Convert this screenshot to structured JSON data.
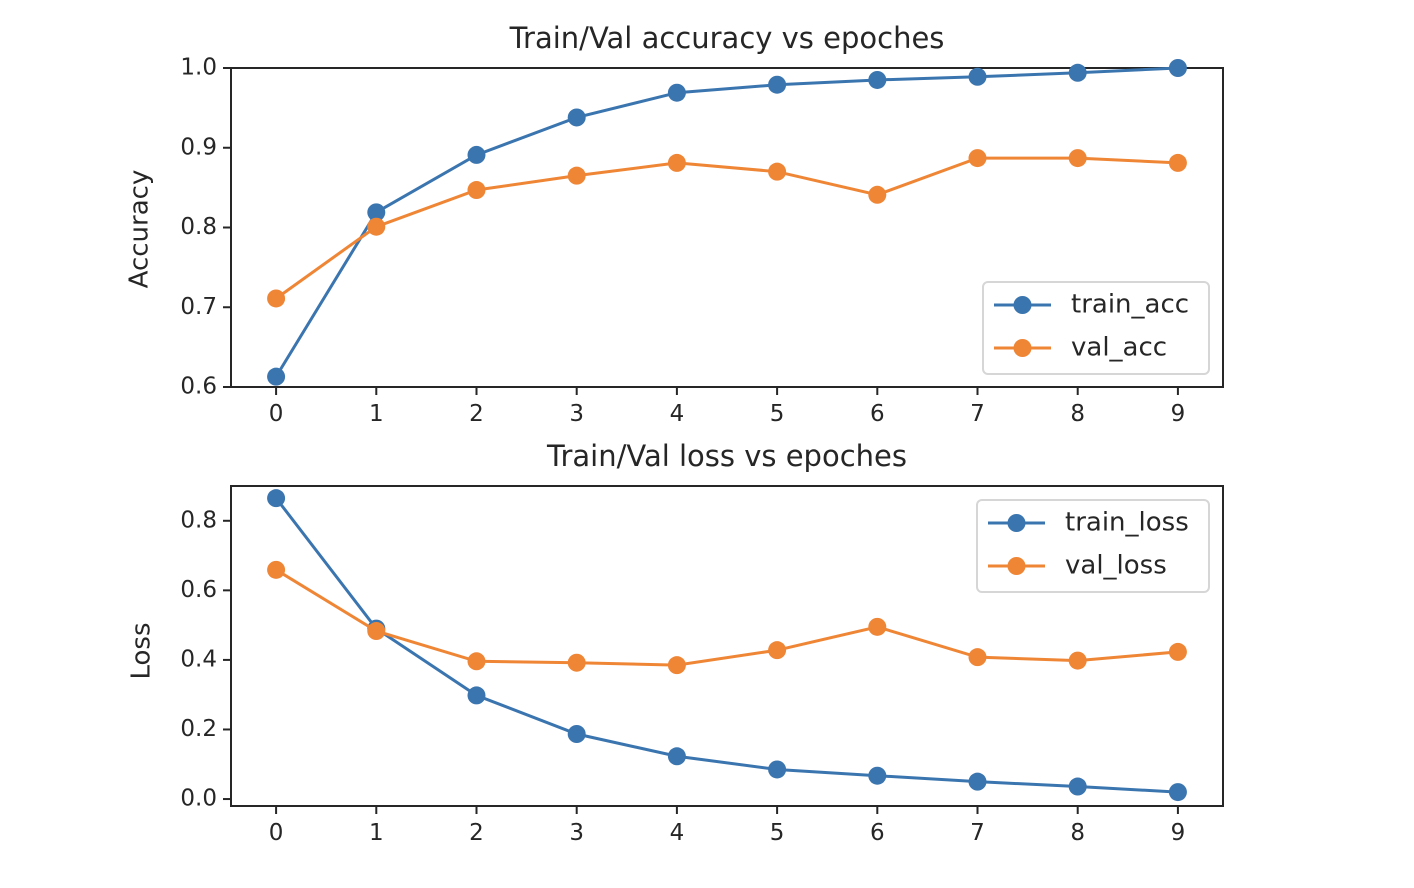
{
  "chart_data": [
    {
      "type": "line",
      "title": "Train/Val accuracy vs epoches",
      "xlabel": "",
      "ylabel": "Accuracy",
      "x": [
        0,
        1,
        2,
        3,
        4,
        5,
        6,
        7,
        8,
        9
      ],
      "xticks": [
        "0",
        "1",
        "2",
        "3",
        "4",
        "5",
        "6",
        "7",
        "8",
        "9"
      ],
      "ylim": [
        0.6,
        1.0
      ],
      "yticks": [
        "0.6",
        "0.7",
        "0.8",
        "0.9",
        "1.0"
      ],
      "grid": false,
      "legend_position": "lower right",
      "series": [
        {
          "name": "train_acc",
          "color": "#3b75af",
          "marker": "circle",
          "values": [
            0.613,
            0.819,
            0.891,
            0.938,
            0.969,
            0.979,
            0.985,
            0.989,
            0.994,
            1.0
          ]
        },
        {
          "name": "val_acc",
          "color": "#ef8636",
          "marker": "circle",
          "values": [
            0.711,
            0.801,
            0.847,
            0.865,
            0.881,
            0.87,
            0.841,
            0.887,
            0.887,
            0.881
          ]
        }
      ]
    },
    {
      "type": "line",
      "title": "Train/Val loss vs epoches",
      "xlabel": "",
      "ylabel": "Loss",
      "x": [
        0,
        1,
        2,
        3,
        4,
        5,
        6,
        7,
        8,
        9
      ],
      "xticks": [
        "0",
        "1",
        "2",
        "3",
        "4",
        "5",
        "6",
        "7",
        "8",
        "9"
      ],
      "ylim": [
        -0.02,
        0.9
      ],
      "yticks": [
        "0.0",
        "0.2",
        "0.4",
        "0.6",
        "0.8"
      ],
      "grid": false,
      "legend_position": "upper right",
      "series": [
        {
          "name": "train_loss",
          "color": "#3b75af",
          "marker": "circle",
          "values": [
            0.865,
            0.49,
            0.298,
            0.187,
            0.123,
            0.085,
            0.067,
            0.05,
            0.036,
            0.02
          ]
        },
        {
          "name": "val_loss",
          "color": "#ef8636",
          "marker": "circle",
          "values": [
            0.659,
            0.483,
            0.396,
            0.392,
            0.385,
            0.428,
            0.495,
            0.408,
            0.398,
            0.423
          ]
        }
      ]
    }
  ]
}
